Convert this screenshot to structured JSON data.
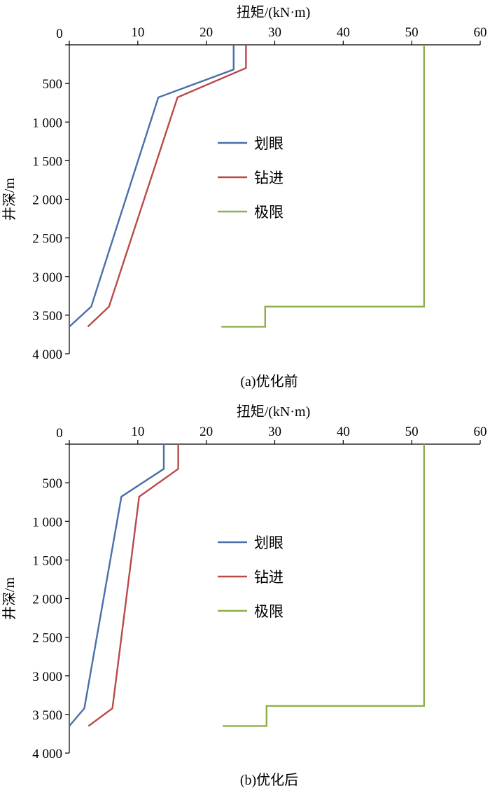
{
  "chart_data": [
    {
      "type": "line",
      "caption": "(a)优化前",
      "xlabel": "扭矩/(kN·m)",
      "ylabel": "井深/m",
      "xlim": [
        0,
        60
      ],
      "ylim": [
        0,
        4000
      ],
      "y_inverted": true,
      "x_axis_position": "top",
      "x_ticks": [
        0,
        10,
        20,
        30,
        40,
        50,
        60
      ],
      "x_tick_labels": [
        "0",
        "10",
        "20",
        "30",
        "40",
        "50",
        "60"
      ],
      "y_ticks": [
        0,
        500,
        1000,
        1500,
        2000,
        2500,
        3000,
        3500,
        4000
      ],
      "y_tick_labels": [
        "0",
        "500",
        "1 000",
        "1 500",
        "2 000",
        "2 500",
        "3 000",
        "3 500",
        "4 000"
      ],
      "legend_position": "center",
      "series": [
        {
          "name": "划眼",
          "color": "#4a6ea8",
          "points": [
            [
              24.0,
              0
            ],
            [
              24.0,
              320
            ],
            [
              13.0,
              680
            ],
            [
              3.2,
              3390
            ],
            [
              0.0,
              3650
            ]
          ]
        },
        {
          "name": "钻进",
          "color": "#b94a48",
          "points": [
            [
              25.8,
              0
            ],
            [
              25.8,
              300
            ],
            [
              15.8,
              680
            ],
            [
              5.8,
              3390
            ],
            [
              2.7,
              3650
            ]
          ]
        },
        {
          "name": "极限",
          "color": "#8db04a",
          "points": [
            [
              51.8,
              0
            ],
            [
              51.8,
              3390
            ],
            [
              28.6,
              3390
            ],
            [
              28.6,
              3650
            ],
            [
              22.2,
              3650
            ]
          ]
        }
      ]
    },
    {
      "type": "line",
      "caption": "(b)优化后",
      "xlabel": "扭矩/(kN·m)",
      "ylabel": "井深/m",
      "xlim": [
        0,
        60
      ],
      "ylim": [
        0,
        4000
      ],
      "y_inverted": true,
      "x_axis_position": "top",
      "x_ticks": [
        0,
        10,
        20,
        30,
        40,
        50,
        60
      ],
      "x_tick_labels": [
        "0",
        "10",
        "20",
        "30",
        "40",
        "50",
        "60"
      ],
      "y_ticks": [
        0,
        500,
        1000,
        1500,
        2000,
        2500,
        3000,
        3500,
        4000
      ],
      "y_tick_labels": [
        "0",
        "500",
        "1 000",
        "1 500",
        "2 000",
        "2 500",
        "3 000",
        "3 500",
        "4 000"
      ],
      "legend_position": "center",
      "series": [
        {
          "name": "划眼",
          "color": "#4a6ea8",
          "points": [
            [
              13.8,
              0
            ],
            [
              13.8,
              320
            ],
            [
              7.6,
              680
            ],
            [
              2.2,
              3420
            ],
            [
              0.0,
              3650
            ]
          ]
        },
        {
          "name": "钻进",
          "color": "#b94a48",
          "points": [
            [
              15.9,
              0
            ],
            [
              15.9,
              320
            ],
            [
              10.2,
              680
            ],
            [
              6.3,
              3420
            ],
            [
              2.8,
              3650
            ]
          ]
        },
        {
          "name": "极限",
          "color": "#8db04a",
          "points": [
            [
              51.8,
              0
            ],
            [
              51.8,
              3390
            ],
            [
              28.8,
              3390
            ],
            [
              28.8,
              3650
            ],
            [
              22.4,
              3650
            ]
          ]
        }
      ]
    }
  ]
}
